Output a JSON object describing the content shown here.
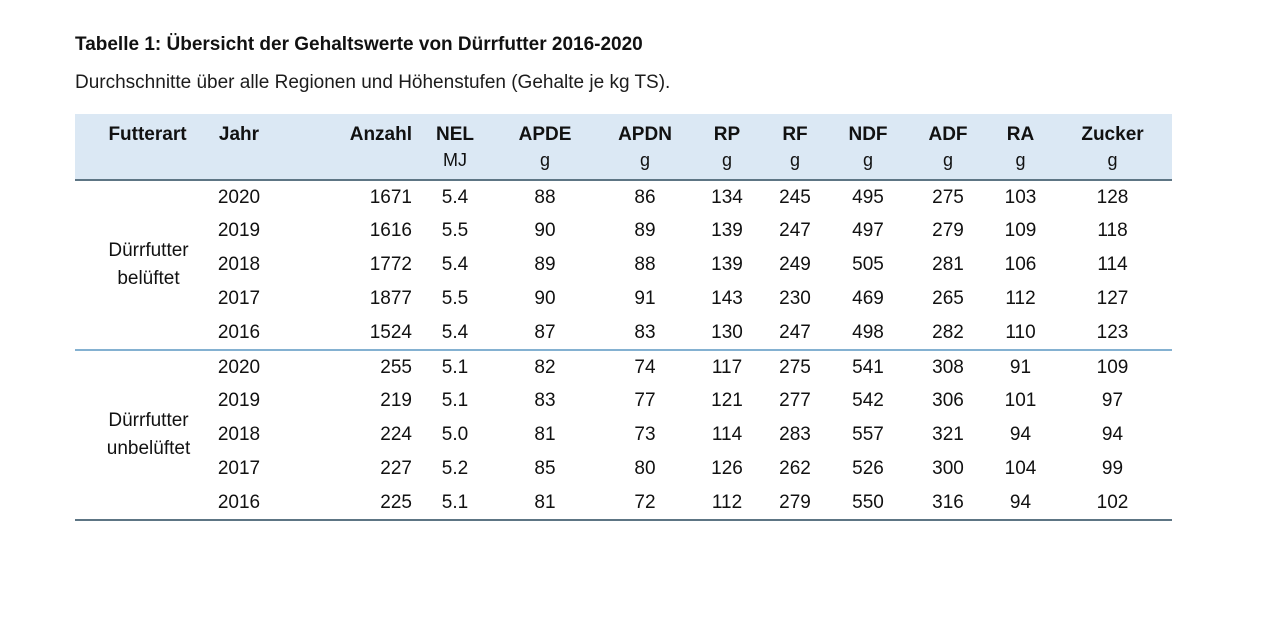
{
  "page": {
    "title": "Tabelle 1: Übersicht der Gehaltswerte von Dürrfutter 2016-2020",
    "subtitle": "Durchschnitte über alle Regionen und Höhenstufen (Gehalte je kg TS)."
  },
  "colors": {
    "header-bg": "#dbe8f4",
    "line-dark": "#5d7584",
    "line-light": "#84b1d1",
    "text": "#111111"
  },
  "table": {
    "columns": [
      {
        "key": "futterart",
        "label": "Futterart",
        "unit": ""
      },
      {
        "key": "jahr",
        "label": "Jahr",
        "unit": ""
      },
      {
        "key": "anzahl",
        "label": "Anzahl",
        "unit": ""
      },
      {
        "key": "nel",
        "label": "NEL",
        "unit": "MJ"
      },
      {
        "key": "apde",
        "label": "APDE",
        "unit": "g"
      },
      {
        "key": "apdn",
        "label": "APDN",
        "unit": "g"
      },
      {
        "key": "rp",
        "label": "RP",
        "unit": "g"
      },
      {
        "key": "rf",
        "label": "RF",
        "unit": "g"
      },
      {
        "key": "ndf",
        "label": "NDF",
        "unit": "g"
      },
      {
        "key": "adf",
        "label": "ADF",
        "unit": "g"
      },
      {
        "key": "ra",
        "label": "RA",
        "unit": "g"
      },
      {
        "key": "zucker",
        "label": "Zucker",
        "unit": "g"
      }
    ],
    "groups": [
      {
        "label": "Dürrfutter belüftet",
        "rows": [
          [
            "2020",
            "1671",
            "5.4",
            "88",
            "86",
            "134",
            "245",
            "495",
            "275",
            "103",
            "128"
          ],
          [
            "2019",
            "1616",
            "5.5",
            "90",
            "89",
            "139",
            "247",
            "497",
            "279",
            "109",
            "118"
          ],
          [
            "2018",
            "1772",
            "5.4",
            "89",
            "88",
            "139",
            "249",
            "505",
            "281",
            "106",
            "114"
          ],
          [
            "2017",
            "1877",
            "5.5",
            "90",
            "91",
            "143",
            "230",
            "469",
            "265",
            "112",
            "127"
          ],
          [
            "2016",
            "1524",
            "5.4",
            "87",
            "83",
            "130",
            "247",
            "498",
            "282",
            "110",
            "123"
          ]
        ]
      },
      {
        "label": "Dürrfutter unbelüftet",
        "rows": [
          [
            "2020",
            "255",
            "5.1",
            "82",
            "74",
            "117",
            "275",
            "541",
            "308",
            "91",
            "109"
          ],
          [
            "2019",
            "219",
            "5.1",
            "83",
            "77",
            "121",
            "277",
            "542",
            "306",
            "101",
            "97"
          ],
          [
            "2018",
            "224",
            "5.0",
            "81",
            "73",
            "114",
            "283",
            "557",
            "321",
            "94",
            "94"
          ],
          [
            "2017",
            "227",
            "5.2",
            "85",
            "80",
            "126",
            "262",
            "526",
            "300",
            "104",
            "99"
          ],
          [
            "2016",
            "225",
            "5.1",
            "81",
            "72",
            "112",
            "279",
            "550",
            "316",
            "94",
            "102"
          ]
        ]
      }
    ]
  }
}
